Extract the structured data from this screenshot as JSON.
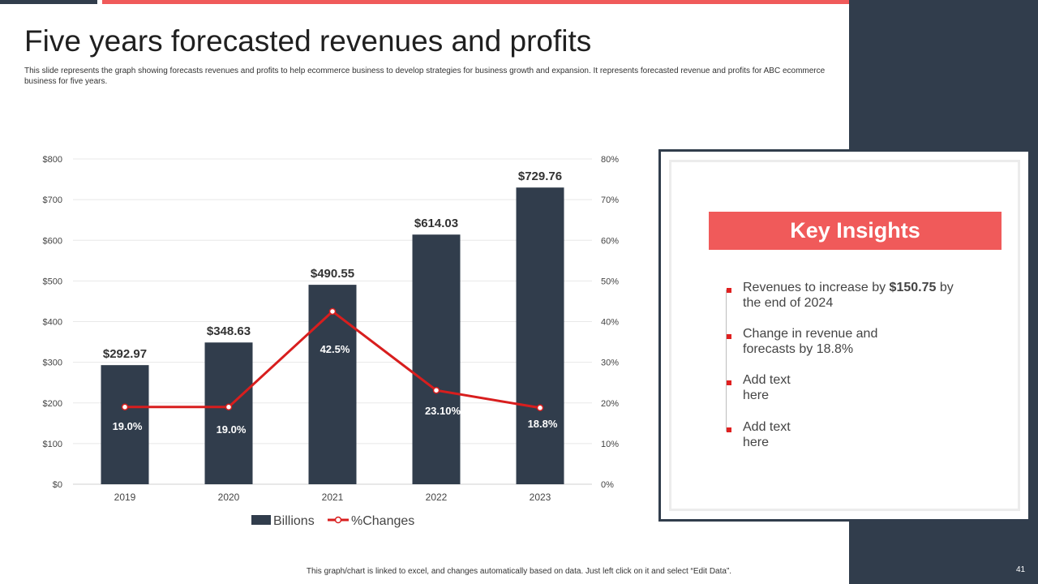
{
  "slide": {
    "title": "Five years forecasted revenues and profits",
    "subtitle": "This slide represents the graph showing forecasts revenues and profits to help ecommerce business to develop strategies for business growth and expansion. It represents forecasted revenue and profits for ABC ecommerce business for five years.",
    "footer_note": "This graph/chart is linked to excel, and changes automatically based on data. Just left click on it and select “Edit Data”.",
    "page_number": "41"
  },
  "colors": {
    "bar": "#313d4c",
    "line": "#d81e1e",
    "accent": "#f05a5a",
    "panel": "#313d4c"
  },
  "chart_data": {
    "type": "bar",
    "categories": [
      "2019",
      "2020",
      "2021",
      "2022",
      "2023"
    ],
    "series": [
      {
        "name": "Billions",
        "type": "bar",
        "axis": "left",
        "values": [
          292.97,
          348.63,
          490.55,
          614.03,
          729.76
        ],
        "labels": [
          "$292.97",
          "$348.63",
          "$490.55",
          "$614.03",
          "$729.76"
        ]
      },
      {
        "name": "%Changes",
        "type": "line",
        "axis": "right",
        "values": [
          19.0,
          19.0,
          42.5,
          23.1,
          18.8
        ],
        "labels": [
          "19.0%",
          "19.0%",
          "42.5%",
          "23.10%",
          "18.8%"
        ]
      }
    ],
    "y_left": {
      "min": 0,
      "max": 800,
      "step": 100,
      "ticks": [
        "$0",
        "$100",
        "$200",
        "$300",
        "$400",
        "$500",
        "$600",
        "$700",
        "$800"
      ]
    },
    "y_right": {
      "min": 0,
      "max": 80,
      "step": 10,
      "ticks": [
        "0%",
        "10%",
        "20%",
        "30%",
        "40%",
        "50%",
        "60%",
        "70%",
        "80%"
      ]
    },
    "grid": true,
    "legend_position": "bottom"
  },
  "insights": {
    "title": "Key Insights",
    "items": [
      {
        "text_before": "Revenues to increase by ",
        "bold": "$150.75",
        "text_after": " by the end of 2024"
      },
      {
        "text_before": "Change in revenue and forecasts by 18.8%",
        "bold": "",
        "text_after": ""
      },
      {
        "text_before": "Add text here",
        "bold": "",
        "text_after": ""
      },
      {
        "text_before": "Add text here",
        "bold": "",
        "text_after": ""
      }
    ]
  }
}
